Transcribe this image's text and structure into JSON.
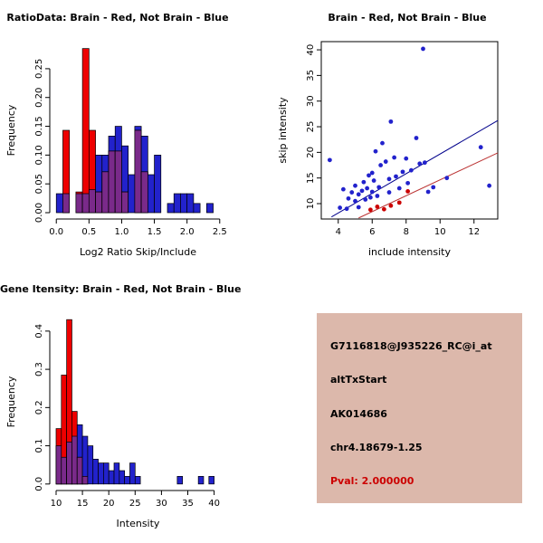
{
  "colors": {
    "brain": "#ee0000",
    "not_brain": "#2222cc",
    "overlap": "#7a2a8a",
    "fit_line_not_brain": "#00008b",
    "fit_line_brain": "#bb3333",
    "info_box_bg": "#dcb8ab",
    "pval_text": "#cc0000"
  },
  "info_box": {
    "bg_color": "#dcb8ab",
    "lines": [
      {
        "text": "G7116818@J935226_RC@i_at",
        "color": "#000000"
      },
      {
        "text": "altTxStart",
        "color": "#000000"
      },
      {
        "text": "AK014686",
        "color": "#000000"
      },
      {
        "text": "chr4.18679-1.25",
        "color": "#000000"
      },
      {
        "text": "Pval: 2.000000",
        "color": "#cc0000"
      }
    ]
  },
  "chart_data": [
    {
      "id": "chart-ratio-hist",
      "type": "bar",
      "subtype": "overlaid-histogram",
      "title": "RatioData: Brain - Red, Not Brain - Blue",
      "xlabel": "Log2 Ratio Skip/Include",
      "ylabel": "Frequency",
      "legend": "Brain = red, Not Brain = blue, overlap = purple",
      "bin_start": 0.0,
      "bin_width": 0.1,
      "xlim": [
        -0.1,
        2.6
      ],
      "ylim": [
        -0.011,
        0.297
      ],
      "xticks": [
        0,
        0.5,
        1,
        1.5,
        2,
        2.5
      ],
      "xtick_labels": [
        "0.0",
        "0.5",
        "1.0",
        "1.5",
        "2.0",
        "2.5"
      ],
      "yticks": [
        0,
        0.05,
        0.1,
        0.15,
        0.2,
        0.25
      ],
      "ytick_labels": [
        "0.00",
        "0.05",
        "0.10",
        "0.15",
        "0.20",
        "0.25"
      ],
      "overlap_color": "#7a2a8a",
      "series": [
        {
          "name": "Not Brain",
          "color": "#2222cc",
          "values": [
            0.033,
            0.033,
            0,
            0.033,
            0.033,
            0.04,
            0.1,
            0.1,
            0.133,
            0.15,
            0.116,
            0.066,
            0.15,
            0.133,
            0.066,
            0.1,
            0,
            0.016,
            0.033,
            0.033,
            0.033,
            0.016,
            0,
            0.016
          ]
        },
        {
          "name": "Brain",
          "color": "#ee0000",
          "values": [
            0,
            0.143,
            0,
            0.036,
            0.285,
            0.143,
            0.036,
            0.071,
            0.107,
            0.107,
            0.036,
            0,
            0.143,
            0.071,
            0,
            0,
            0,
            0,
            0,
            0,
            0,
            0,
            0,
            0
          ]
        }
      ]
    },
    {
      "id": "chart-scatter",
      "type": "scatter",
      "title": "Brain - Red, Not Brain - Blue",
      "xlabel": "include intensity",
      "ylabel": "skip intensity",
      "xlim": [
        3.0,
        13.4
      ],
      "ylim": [
        7.0,
        41.6
      ],
      "xticks": [
        4,
        6,
        8,
        10,
        12
      ],
      "xtick_labels": [
        "4",
        "6",
        "8",
        "10",
        "12"
      ],
      "yticks": [
        10,
        15,
        20,
        25,
        30,
        35,
        40
      ],
      "ytick_labels": [
        "10",
        "15",
        "20",
        "25",
        "30",
        "35",
        "40"
      ],
      "series": [
        {
          "name": "Not Brain",
          "color": "#2222cc",
          "points": [
            [
              3.5,
              18.5
            ],
            [
              4.1,
              9.2
            ],
            [
              4.3,
              12.8
            ],
            [
              4.5,
              9.0
            ],
            [
              4.6,
              11.0
            ],
            [
              4.8,
              12.2
            ],
            [
              5.0,
              10.5
            ],
            [
              5.0,
              13.5
            ],
            [
              5.2,
              11.8
            ],
            [
              5.2,
              9.3
            ],
            [
              5.4,
              12.5
            ],
            [
              5.5,
              14.2
            ],
            [
              5.6,
              10.8
            ],
            [
              5.7,
              13.0
            ],
            [
              5.8,
              15.5
            ],
            [
              5.9,
              11.2
            ],
            [
              6.0,
              12.3
            ],
            [
              6.0,
              16.0
            ],
            [
              6.1,
              14.5
            ],
            [
              6.2,
              20.2
            ],
            [
              6.3,
              11.5
            ],
            [
              6.4,
              13.2
            ],
            [
              6.5,
              17.5
            ],
            [
              6.6,
              21.8
            ],
            [
              6.8,
              18.2
            ],
            [
              7.0,
              14.8
            ],
            [
              7.0,
              12.2
            ],
            [
              7.1,
              26.0
            ],
            [
              7.3,
              19.0
            ],
            [
              7.4,
              15.3
            ],
            [
              7.6,
              13.0
            ],
            [
              7.8,
              16.2
            ],
            [
              8.0,
              18.8
            ],
            [
              8.1,
              14.0
            ],
            [
              8.3,
              16.5
            ],
            [
              8.6,
              22.8
            ],
            [
              8.8,
              17.8
            ],
            [
              9.0,
              40.2
            ],
            [
              9.1,
              18.0
            ],
            [
              9.3,
              12.3
            ],
            [
              9.6,
              13.2
            ],
            [
              10.4,
              15.0
            ],
            [
              12.4,
              21.0
            ],
            [
              12.9,
              13.5
            ]
          ]
        },
        {
          "name": "Brain",
          "color": "#cc0000",
          "points": [
            [
              5.9,
              8.8
            ],
            [
              6.3,
              9.4
            ],
            [
              6.7,
              8.9
            ],
            [
              7.1,
              9.6
            ],
            [
              7.6,
              10.2
            ],
            [
              8.1,
              12.4
            ]
          ]
        }
      ],
      "fit_lines": [
        {
          "name": "not-brain-fit",
          "color": "#00008b",
          "x1": 3.6,
          "y1": 7.4,
          "x2": 13.4,
          "y2": 26.2
        },
        {
          "name": "brain-fit",
          "color": "#bb3333",
          "x1": 5.2,
          "y1": 7.2,
          "x2": 13.4,
          "y2": 19.9
        }
      ]
    },
    {
      "id": "chart-gene-hist",
      "type": "bar",
      "subtype": "overlaid-histogram",
      "title": "Gene Itensity: Brain - Red, Not Brain - Blue",
      "xlabel": "Intensity",
      "ylabel": "Frequency",
      "legend": "Brain = red, Not Brain = blue, overlap = purple",
      "bin_start": 10,
      "bin_width": 1,
      "xlim": [
        8.8,
        42.3
      ],
      "ylim": [
        -0.017,
        0.447
      ],
      "xticks": [
        10,
        15,
        20,
        25,
        30,
        35,
        40
      ],
      "xtick_labels": [
        "10",
        "15",
        "20",
        "25",
        "30",
        "35",
        "40"
      ],
      "yticks": [
        0,
        0.1,
        0.2,
        0.3,
        0.4
      ],
      "ytick_labels": [
        "0.0",
        "0.1",
        "0.2",
        "0.3",
        "0.4"
      ],
      "overlap_color": "#7a2a8a",
      "series": [
        {
          "name": "Not Brain",
          "color": "#2222cc",
          "values": [
            0.1,
            0.07,
            0.11,
            0.125,
            0.155,
            0.125,
            0.1,
            0.065,
            0.055,
            0.055,
            0.035,
            0.055,
            0.035,
            0.02,
            0.055,
            0.02,
            0,
            0,
            0,
            0,
            0,
            0,
            0,
            0.02,
            0,
            0,
            0,
            0.02,
            0,
            0.02,
            0
          ]
        },
        {
          "name": "Brain",
          "color": "#ee0000",
          "values": [
            0.145,
            0.285,
            0.43,
            0.19,
            0.07,
            0.02,
            0,
            0,
            0,
            0,
            0,
            0,
            0,
            0,
            0,
            0,
            0,
            0,
            0,
            0,
            0,
            0,
            0,
            0,
            0,
            0,
            0,
            0,
            0,
            0,
            0
          ]
        }
      ]
    }
  ]
}
